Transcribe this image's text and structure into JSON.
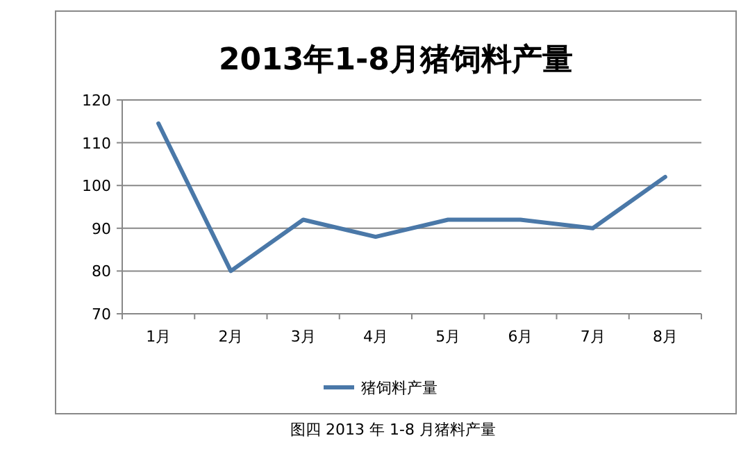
{
  "chart_data": {
    "type": "line",
    "title": "2013年1-8月猪饲料产量",
    "categories": [
      "1月",
      "2月",
      "3月",
      "4月",
      "5月",
      "6月",
      "7月",
      "8月"
    ],
    "series": [
      {
        "name": "猪饲料产量",
        "color": "#4a78a8",
        "values": [
          114.5,
          80,
          92,
          88,
          92,
          92,
          90,
          102
        ]
      }
    ],
    "ylim": [
      70,
      120
    ],
    "yticks": [
      70,
      80,
      90,
      100,
      110,
      120
    ],
    "grid": "y",
    "legend": "bottom",
    "marker": "none",
    "line_style": "solid",
    "annotations": [
      "图四 2013 年 1-8 月猪料产量"
    ]
  }
}
